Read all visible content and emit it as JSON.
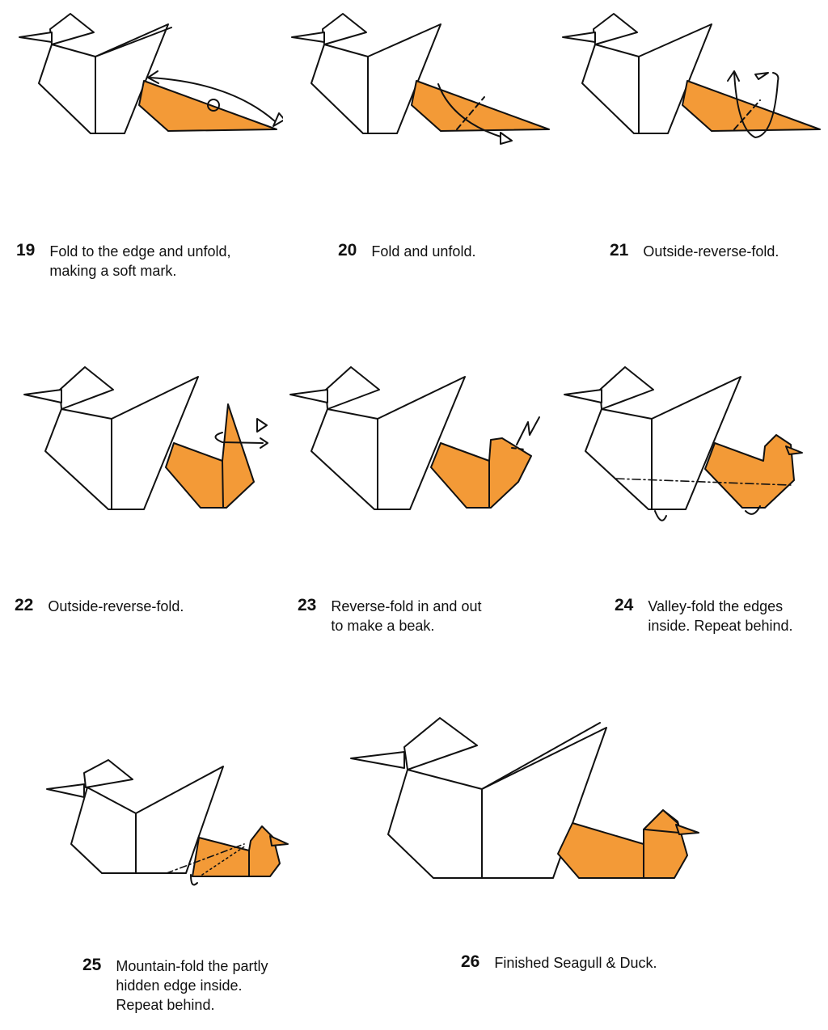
{
  "colors": {
    "paper_white": "#ffffff",
    "paper_orange": "#f39a37",
    "line": "#111111"
  },
  "steps": [
    {
      "number": "19",
      "text": "Fold to the edge and unfold,\nmaking a soft mark."
    },
    {
      "number": "20",
      "text": "Fold and unfold."
    },
    {
      "number": "21",
      "text": "Outside-reverse-fold."
    },
    {
      "number": "22",
      "text": "Outside-reverse-fold."
    },
    {
      "number": "23",
      "text": "Reverse-fold in and out\nto make a beak."
    },
    {
      "number": "24",
      "text": "Valley-fold the edges\ninside. Repeat behind."
    },
    {
      "number": "25",
      "text": "Mountain-fold the partly\nhidden edge inside.\nRepeat behind."
    },
    {
      "number": "26",
      "text": "Finished Seagull & Duck."
    }
  ]
}
